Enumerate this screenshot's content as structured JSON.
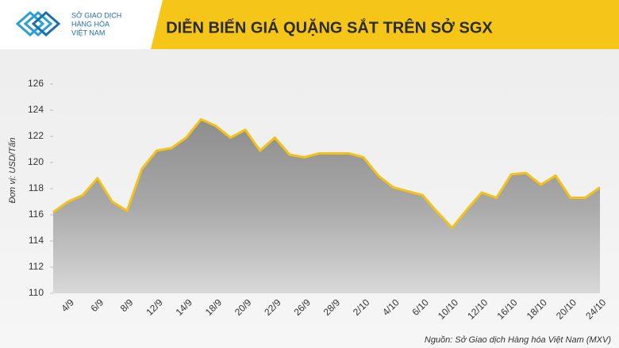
{
  "logo": {
    "lines": [
      "SỞ GIAO DỊCH",
      "HÀNG HÓA",
      "VIỆT NAM"
    ]
  },
  "chart_data": {
    "type": "area",
    "title": "DIỄN BIẾN GIÁ QUẶNG SẮT TRÊN SỞ SGX",
    "y_label": "Đơn vị: USD/Tấn",
    "source": "Nguồn: Sở Giao dịch Hàng hóa Việt Nam (MXV)",
    "categories": [
      null,
      "4/9",
      null,
      "6/9",
      null,
      "8/9",
      null,
      "12/9",
      null,
      "14/9",
      null,
      "18/9",
      null,
      "20/9",
      null,
      "22/9",
      null,
      "26/9",
      null,
      "28/9",
      null,
      "2/10",
      null,
      "4/10",
      null,
      "6/10",
      null,
      "10/10",
      null,
      "12/10",
      null,
      "16/10",
      null,
      "18/10",
      null,
      "20/10",
      null,
      "24/10"
    ],
    "values": [
      116.2,
      117.0,
      117.5,
      118.8,
      117.0,
      116.3,
      119.5,
      120.9,
      121.1,
      121.9,
      123.3,
      122.8,
      121.9,
      122.5,
      120.9,
      121.9,
      120.6,
      120.4,
      120.7,
      120.7,
      120.7,
      120.4,
      119.0,
      118.1,
      117.8,
      117.5,
      116.2,
      115.0,
      116.4,
      117.7,
      117.3,
      119.1,
      119.2,
      118.3,
      119.0,
      117.3,
      117.3,
      118.1
    ],
    "color": "#f2c21b",
    "ylim": [
      110,
      126
    ],
    "yticks": [
      110,
      112,
      114,
      116,
      118,
      120,
      122,
      124,
      126
    ]
  }
}
